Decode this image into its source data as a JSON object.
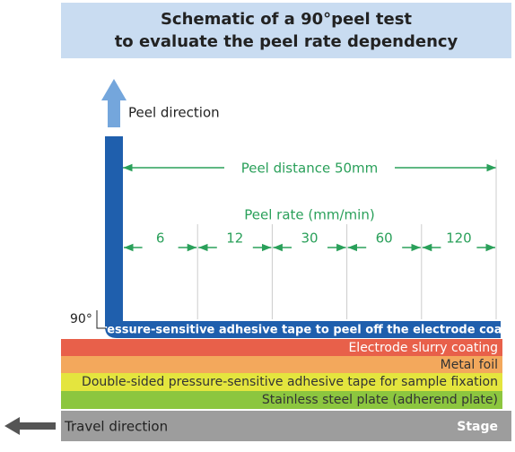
{
  "header": {
    "title_lines": [
      "Schematic of a 90°peel test",
      "to evaluate the peel rate dependency"
    ]
  },
  "peel_direction": "Peel direction",
  "peel_distance": "Peel distance 50mm",
  "peel_rate_title": "Peel rate (mm/min)",
  "peel_rates": [
    6,
    12,
    30,
    60,
    120
  ],
  "angle": "90°",
  "layers": [
    "Pressure-sensitive adhesive tape to peel off the electrode coating",
    "Electrode slurry coating",
    "Metal foil",
    "Double-sided pressure-sensitive adhesive tape for sample fixation",
    "Stainless steel plate (adherend plate)"
  ],
  "stage": {
    "label": "Stage",
    "travel": "Travel direction"
  }
}
